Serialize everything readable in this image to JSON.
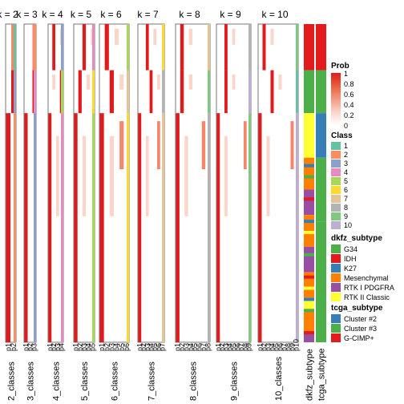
{
  "chart_data": {
    "type": "heatmap",
    "title": "",
    "panels": [
      {
        "title": "k = 2",
        "xlabel": "2_classes",
        "ticks": [
          "p1",
          "p2"
        ]
      },
      {
        "title": "k = 3",
        "xlabel": "3_classes",
        "ticks": [
          "p1",
          "p2",
          "p3"
        ]
      },
      {
        "title": "k = 4",
        "xlabel": "4_classes",
        "ticks": [
          "p1",
          "p2",
          "p3",
          "p4"
        ]
      },
      {
        "title": "k = 5",
        "xlabel": "5_classes",
        "ticks": [
          "p1",
          "p2",
          "p3",
          "p4",
          "p5"
        ]
      },
      {
        "title": "k = 6",
        "xlabel": "6_classes",
        "ticks": [
          "p1",
          "p2",
          "p3",
          "p4",
          "p5",
          "p6"
        ]
      },
      {
        "title": "k = 7",
        "xlabel": "7_classes",
        "ticks": [
          "p1",
          "p2",
          "p3",
          "p4",
          "p5",
          "p6",
          "p7"
        ]
      },
      {
        "title": "k = 8",
        "xlabel": "8_classes",
        "ticks": [
          "p1",
          "p2",
          "p3",
          "p4",
          "p5",
          "p6",
          "p7",
          "p8"
        ]
      },
      {
        "title": "k = 9",
        "xlabel": "9_classes",
        "ticks": [
          "p1",
          "p2",
          "p3",
          "p4",
          "p5",
          "p6",
          "p7",
          "p8",
          "p9"
        ]
      },
      {
        "title": "k = 10",
        "xlabel": "10_classes",
        "ticks": [
          "p1",
          "p2",
          "p3",
          "p4",
          "p5",
          "p6",
          "p7",
          "p8",
          "p9",
          "p10"
        ]
      }
    ],
    "annotation_tracks": [
      "dkfz_subtype",
      "tcga_subtype"
    ],
    "legends": {
      "prob": {
        "title": "Prob",
        "labels": [
          "1",
          "0.8",
          "0.6",
          "0.4",
          "0.2",
          "0"
        ],
        "colors": [
          "#ffffff",
          "#f9d5c9",
          "#f29a80",
          "#ea5e3c",
          "#e31a1c"
        ]
      },
      "class": {
        "title": "Class",
        "labels": [
          "1",
          "2",
          "3",
          "4",
          "5",
          "6",
          "7",
          "8",
          "9",
          "10"
        ],
        "colors": [
          "#66c2a5",
          "#fc8d62",
          "#8da0cb",
          "#e78ac3",
          "#a6d854",
          "#ffd92f",
          "#e5c494",
          "#b3b3b3",
          "#7fc97f",
          "#beaed4"
        ]
      },
      "dkfz": {
        "title": "dkfz_subtype",
        "labels": [
          "G34",
          "IDH",
          "K27",
          "Mesenchymal",
          "RTK I PDGFRA",
          "RTK II Classic"
        ],
        "colors": [
          "#4daf4a",
          "#e41a1c",
          "#377eb8",
          "#ff7f00",
          "#984ea3",
          "#ffff33"
        ]
      },
      "tcga": {
        "title": "tcga_subtype",
        "labels": [
          "Cluster #2",
          "Cluster #3",
          "G-CIMP+"
        ],
        "colors": [
          "#377eb8",
          "#4daf4a",
          "#e41a1c"
        ]
      }
    }
  }
}
